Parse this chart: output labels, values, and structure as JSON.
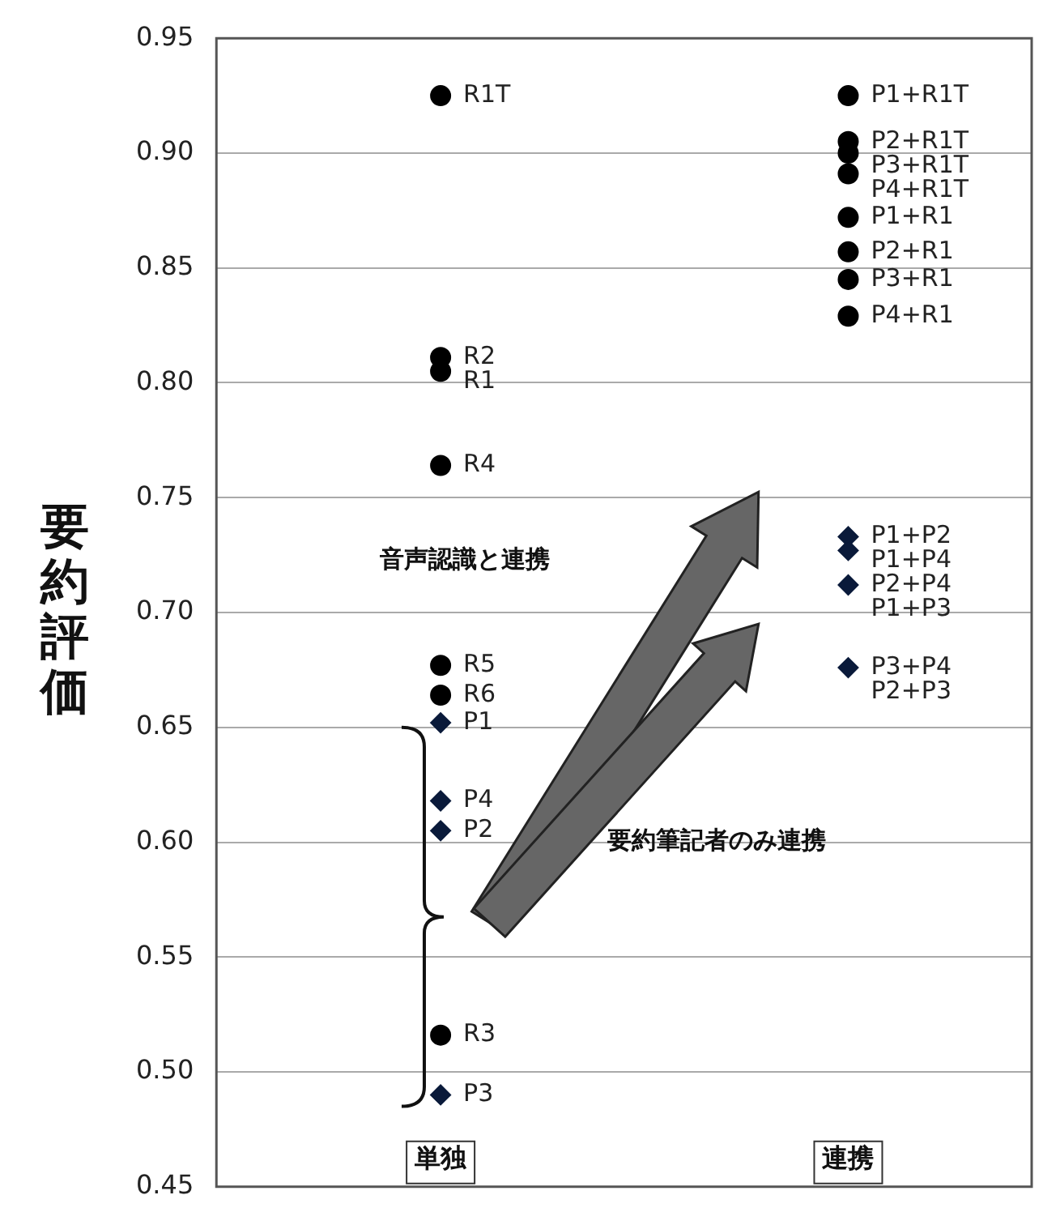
{
  "chart_data": {
    "type": "scatter",
    "ylabel": "要約評価",
    "categories": [
      "単独",
      "連携"
    ],
    "ylim": [
      0.45,
      0.95
    ],
    "yticks": [
      {
        "value": 0.45,
        "label": "0.45"
      },
      {
        "value": 0.5,
        "label": "0.50"
      },
      {
        "value": 0.55,
        "label": "0.55"
      },
      {
        "value": 0.6,
        "label": "0.60"
      },
      {
        "value": 0.65,
        "label": "0.65"
      },
      {
        "value": 0.7,
        "label": "0.70"
      },
      {
        "value": 0.75,
        "label": "0.75"
      },
      {
        "value": 0.8,
        "label": "0.80"
      },
      {
        "value": 0.85,
        "label": "0.85"
      },
      {
        "value": 0.9,
        "label": "0.90"
      },
      {
        "value": 0.95,
        "label": "0.95"
      }
    ],
    "grid": "y",
    "legend": false,
    "series": [
      {
        "color": "#000000",
        "marker": "circle",
        "x": [
          "単独",
          "単独",
          "単独",
          "単独",
          "単独",
          "単独",
          "単独",
          "連携",
          "連携",
          "連携",
          "連携",
          "連携",
          "連携",
          "連携",
          "連携"
        ],
        "values": [
          0.925,
          0.811,
          0.805,
          0.764,
          0.677,
          0.664,
          0.516,
          0.925,
          0.905,
          0.9,
          0.891,
          0.872,
          0.857,
          0.845,
          0.829
        ]
      },
      {
        "color": "#0a1a3a",
        "marker": "diamond",
        "x": [
          "単独",
          "単独",
          "単独",
          "単独",
          "連携",
          "連携",
          "連携",
          "連携",
          "連携",
          "連携"
        ],
        "values": [
          0.652,
          0.618,
          0.605,
          0.49,
          0.733,
          0.727,
          0.712,
          null,
          0.676,
          null
        ]
      }
    ],
    "annotations": [
      {
        "text": "R1T",
        "x": "単独",
        "y": 0.925
      },
      {
        "text": "R2",
        "x": "単独",
        "y": 0.811
      },
      {
        "text": "R1",
        "x": "単独",
        "y": 0.805
      },
      {
        "text": "R4",
        "x": "単独",
        "y": 0.764
      },
      {
        "text": "R5",
        "x": "単独",
        "y": 0.677
      },
      {
        "text": "R6",
        "x": "単独",
        "y": 0.664
      },
      {
        "text": "P1",
        "x": "単独",
        "y": 0.652
      },
      {
        "text": "P4",
        "x": "単独",
        "y": 0.618
      },
      {
        "text": "P2",
        "x": "単独",
        "y": 0.605
      },
      {
        "text": "R3",
        "x": "単独",
        "y": 0.516
      },
      {
        "text": "P3",
        "x": "単独",
        "y": 0.49
      },
      {
        "text": "P1+R1T",
        "x": "連携",
        "y": 0.925
      },
      {
        "text": "P2+R1T",
        "x": "連携",
        "y": 0.905
      },
      {
        "text": "P3+R1T",
        "x": "連携",
        "y": 0.9
      },
      {
        "text": "P4+R1T",
        "x": "連携",
        "y": 0.891
      },
      {
        "text": "P1+R1",
        "x": "連携",
        "y": 0.872
      },
      {
        "text": "P2+R1",
        "x": "連携",
        "y": 0.857
      },
      {
        "text": "P3+R1",
        "x": "連携",
        "y": 0.845
      },
      {
        "text": "P4+R1",
        "x": "連携",
        "y": 0.829
      },
      {
        "text": "P1+P2",
        "x": "連携",
        "y": 0.733
      },
      {
        "text": "P1+P4",
        "x": "連携",
        "y": 0.727
      },
      {
        "text": "P2+P4",
        "x": "連携",
        "y": 0.712
      },
      {
        "text": "P1+P3",
        "x": "連携",
        "y": 0.712
      },
      {
        "text": "P3+P4",
        "x": "連携",
        "y": 0.676
      },
      {
        "text": "P2+P3",
        "x": "連携",
        "y": 0.676
      },
      "音声認識と連携",
      "要約筆記者のみ連携"
    ]
  }
}
